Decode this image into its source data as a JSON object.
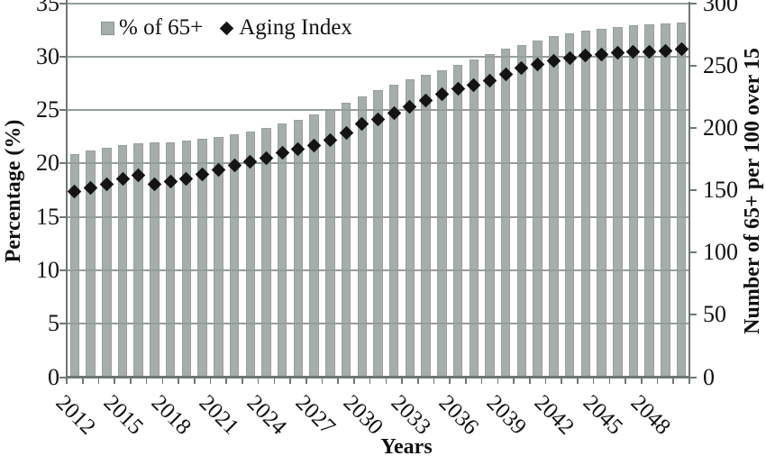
{
  "chart_data": {
    "type": "bar+scatter combo",
    "categories": [
      2012,
      2013,
      2014,
      2015,
      2016,
      2017,
      2018,
      2019,
      2020,
      2021,
      2022,
      2023,
      2024,
      2025,
      2026,
      2027,
      2028,
      2029,
      2030,
      2031,
      2032,
      2033,
      2034,
      2035,
      2036,
      2037,
      2038,
      2039,
      2040,
      2041,
      2042,
      2043,
      2044,
      2045,
      2046,
      2047,
      2048,
      2049,
      2050
    ],
    "series": [
      {
        "name": "% of 65+",
        "type": "bar",
        "axis": "left",
        "color": "#a4aeab",
        "values": [
          20.9,
          21.2,
          21.5,
          21.7,
          21.9,
          22.0,
          22.0,
          22.1,
          22.3,
          22.5,
          22.7,
          23.0,
          23.3,
          23.7,
          24.1,
          24.6,
          25.1,
          25.7,
          26.3,
          26.9,
          27.4,
          27.9,
          28.3,
          28.7,
          29.2,
          29.7,
          30.2,
          30.7,
          31.1,
          31.5,
          31.9,
          32.2,
          32.4,
          32.6,
          32.8,
          32.9,
          33.0,
          33.1,
          33.2
        ]
      },
      {
        "name": "Aging Index",
        "type": "scatter",
        "marker": "diamond",
        "axis": "right",
        "color": "#141414",
        "values": [
          149,
          152,
          155,
          159,
          162,
          155,
          157,
          159,
          163,
          166,
          170,
          173,
          176,
          180,
          183,
          186,
          190,
          196,
          203,
          207,
          212,
          217,
          222,
          227,
          231,
          234,
          238,
          243,
          248,
          251,
          254,
          256,
          258,
          259,
          260,
          261,
          261,
          262,
          263
        ]
      }
    ],
    "left_axis": {
      "title": "Percentage (%)",
      "min": 0,
      "max": 35,
      "tick_step": 5,
      "ticks": [
        0,
        5,
        10,
        15,
        20,
        25,
        30,
        35
      ]
    },
    "right_axis": {
      "title": "Number of 65+ per 100 over 15",
      "min": 0,
      "max": 300,
      "tick_step": 50,
      "ticks": [
        0,
        50,
        100,
        150,
        200,
        250,
        300
      ]
    },
    "x_axis": {
      "title": "Years",
      "label_every_n_years": 3,
      "label_rotation_deg": 45,
      "labeled_years": [
        "2012",
        "2015",
        "2018",
        "2021",
        "2024",
        "2027",
        "2030",
        "2033",
        "2036",
        "2039",
        "2042",
        "2045",
        "2048"
      ]
    },
    "legend": {
      "position": "top-left-inside",
      "items": [
        {
          "label": "% of 65+",
          "marker": "square",
          "color": "#a4aeab"
        },
        {
          "label": "Aging Index",
          "marker": "diamond",
          "color": "#141414"
        }
      ]
    },
    "grid": "horizontal-on",
    "colors": {
      "bar_fill": "#a4aeab",
      "grid_line": "#949d99",
      "axis_line": "#6e7874",
      "marker": "#141414",
      "text": "#111111",
      "background": "#ffffff"
    }
  }
}
